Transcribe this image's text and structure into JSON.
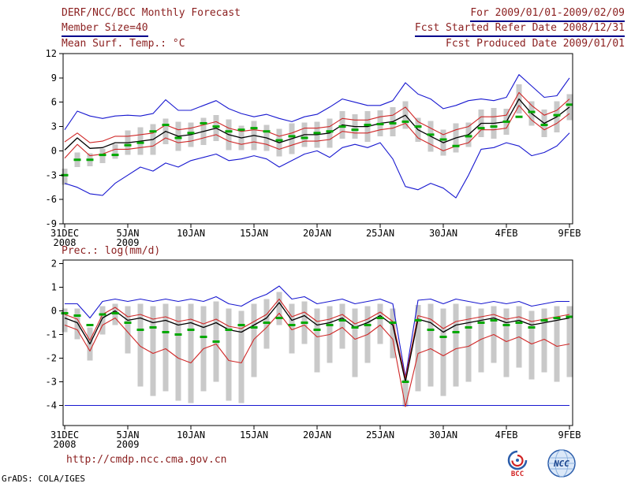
{
  "header": {
    "title": "DERF/NCC/BCC Monthly Forecast",
    "member_size": "Member Size=40",
    "for_range": "For 2009/01/01-2009/02/09",
    "fcst_started": "Fcst Started Refer Date 2008/12/31",
    "fcst_produced": "Fcst Produced Date 2009/01/01"
  },
  "footer": {
    "url": "http://cmdp.ncc.cma.gov.cn",
    "credit": "GrADS: COLA/IGES",
    "logos": [
      {
        "label": "BCC"
      },
      {
        "label": "NCC"
      }
    ]
  },
  "colors": {
    "blue": "#1818d0",
    "red": "#d02828",
    "black": "#000000",
    "green": "#00a800",
    "bar": "#c9c9c9",
    "text": "#8b1f1f",
    "rule": "#00008b"
  },
  "chart_data": [
    {
      "type": "line",
      "name": "surface-temperature-chart",
      "title": "Mean Surf. Temp.: °C",
      "ylabel": "°C",
      "ylim": [
        -9,
        12
      ],
      "yticks": [
        12,
        9,
        6,
        3,
        0,
        -3,
        -6,
        -9
      ],
      "xticks": [
        {
          "day": 0,
          "label": "31DEC",
          "sub": "2008"
        },
        {
          "day": 5,
          "label": "5JAN",
          "sub": "2009"
        },
        {
          "day": 10,
          "label": "10JAN"
        },
        {
          "day": 15,
          "label": "15JAN"
        },
        {
          "day": 20,
          "label": "20JAN"
        },
        {
          "day": 25,
          "label": "25JAN"
        },
        {
          "day": 30,
          "label": "30JAN"
        },
        {
          "day": 35,
          "label": "4FEB"
        },
        {
          "day": 40,
          "label": "9FEB"
        }
      ],
      "series": [
        {
          "name": "ensemble-max",
          "color": "blue",
          "width": 1.1,
          "values": [
            2.6,
            4.9,
            4.3,
            4.0,
            4.3,
            4.4,
            4.3,
            4.6,
            6.3,
            5.0,
            5.0,
            5.6,
            6.2,
            5.2,
            4.6,
            4.2,
            4.5,
            4.0,
            3.6,
            4.2,
            4.5,
            5.4,
            6.4,
            6.0,
            5.6,
            5.6,
            6.2,
            8.4,
            7.0,
            6.4,
            5.2,
            5.6,
            6.2,
            6.4,
            6.2,
            6.6,
            9.4,
            8.0,
            6.6,
            6.8,
            9.0
          ]
        },
        {
          "name": "ensemble-min",
          "color": "blue",
          "width": 1.1,
          "values": [
            -4.0,
            -4.5,
            -5.3,
            -5.5,
            -4.0,
            -3.0,
            -2.0,
            -2.5,
            -1.5,
            -2.0,
            -1.2,
            -0.8,
            -0.4,
            -1.2,
            -1.0,
            -0.6,
            -1.0,
            -2.0,
            -1.2,
            -0.4,
            0.0,
            -0.8,
            0.4,
            0.8,
            0.4,
            1.0,
            -1.0,
            -4.4,
            -4.8,
            -4.0,
            -4.6,
            -5.8,
            -3.0,
            0.2,
            0.4,
            1.0,
            0.6,
            -0.6,
            -0.2,
            0.6,
            2.2
          ]
        },
        {
          "name": "upper-quartile",
          "color": "red",
          "width": 1.1,
          "values": [
            1.1,
            2.2,
            1.0,
            1.2,
            1.8,
            1.8,
            2.0,
            2.2,
            3.2,
            2.6,
            2.8,
            3.2,
            3.6,
            2.8,
            2.4,
            2.6,
            2.4,
            1.8,
            2.2,
            2.8,
            2.8,
            3.0,
            4.0,
            3.8,
            3.8,
            4.2,
            4.4,
            5.4,
            3.6,
            2.8,
            2.0,
            2.6,
            3.0,
            4.2,
            4.2,
            4.4,
            7.2,
            5.6,
            4.4,
            5.0,
            6.4
          ]
        },
        {
          "name": "lower-quartile",
          "color": "red",
          "width": 1.1,
          "values": [
            -0.9,
            0.8,
            -0.6,
            -0.4,
            0.2,
            0.2,
            0.4,
            0.6,
            1.6,
            1.0,
            1.2,
            1.6,
            2.0,
            1.2,
            0.8,
            1.1,
            0.8,
            0.2,
            0.7,
            1.2,
            1.2,
            1.4,
            2.4,
            2.2,
            2.2,
            2.6,
            2.8,
            3.4,
            1.6,
            0.8,
            0.0,
            0.6,
            1.0,
            2.6,
            2.6,
            2.8,
            5.6,
            3.8,
            2.6,
            3.4,
            4.6
          ]
        },
        {
          "name": "ensemble-mean",
          "color": "black",
          "width": 1.3,
          "values": [
            0.1,
            1.6,
            0.3,
            0.4,
            1.0,
            1.0,
            1.2,
            1.4,
            2.4,
            1.8,
            2.0,
            2.4,
            2.8,
            2.0,
            1.6,
            1.9,
            1.6,
            1.0,
            1.5,
            2.0,
            2.0,
            2.2,
            3.2,
            3.0,
            3.0,
            3.4,
            3.6,
            4.4,
            2.6,
            1.8,
            1.0,
            1.6,
            2.0,
            3.4,
            3.4,
            3.6,
            6.4,
            4.6,
            3.4,
            4.2,
            5.4
          ]
        }
      ],
      "bars": {
        "high": [
          -2.2,
          -0.2,
          -0.3,
          0.3,
          0.8,
          2.5,
          2.9,
          3.3,
          4.0,
          3.6,
          3.5,
          4.1,
          4.4,
          3.9,
          3.1,
          3.7,
          3.2,
          2.7,
          3.4,
          3.5,
          3.6,
          4.0,
          4.9,
          4.5,
          4.9,
          5.0,
          5.4,
          6.1,
          4.1,
          3.7,
          2.6,
          3.4,
          3.5,
          5.1,
          5.3,
          5.2,
          8.2,
          6.1,
          5.1,
          6.1,
          7.0
        ],
        "low": [
          -4.2,
          -2.0,
          -1.9,
          -1.5,
          -1.0,
          -0.5,
          -0.5,
          -0.5,
          0.8,
          0.0,
          0.5,
          0.7,
          1.2,
          0.1,
          0.1,
          0.1,
          0.0,
          -0.7,
          -0.4,
          0.5,
          0.4,
          0.4,
          1.5,
          1.5,
          1.1,
          1.8,
          1.8,
          2.7,
          1.1,
          -0.1,
          -0.6,
          -0.2,
          0.5,
          1.7,
          1.5,
          2.0,
          4.6,
          3.1,
          1.7,
          2.3,
          3.8
        ]
      },
      "obs": [
        -3.0,
        -1.1,
        -1.1,
        -0.5,
        -0.5,
        0.7,
        1.0,
        2.4,
        3.2,
        1.6,
        2.2,
        3.4,
        3.0,
        2.4,
        2.6,
        2.8,
        2.4,
        1.3,
        1.8,
        1.6,
        2.2,
        2.4,
        3.0,
        2.6,
        3.2,
        3.3,
        3.4,
        3.6,
        3.0,
        2.0,
        1.4,
        0.6,
        1.8,
        2.8,
        3.0,
        3.6,
        4.2,
        4.8,
        3.2,
        4.4,
        5.7
      ]
    },
    {
      "type": "line",
      "name": "precipitation-chart",
      "title": "Prec.: log(mm/d)",
      "ylabel": "log(mm/d)",
      "ylim": [
        -4,
        2
      ],
      "yticks": [
        2,
        1,
        0,
        -1,
        -2,
        -3,
        -4
      ],
      "xticks": [
        {
          "day": 0,
          "label": "31DEC",
          "sub": "2008"
        },
        {
          "day": 5,
          "label": "5JAN",
          "sub": "2009"
        },
        {
          "day": 10,
          "label": "10JAN"
        },
        {
          "day": 15,
          "label": "15JAN"
        },
        {
          "day": 20,
          "label": "20JAN"
        },
        {
          "day": 25,
          "label": "25JAN"
        },
        {
          "day": 30,
          "label": "30JAN"
        },
        {
          "day": 35,
          "label": "4FEB"
        },
        {
          "day": 40,
          "label": "9FEB"
        }
      ],
      "series": [
        {
          "name": "ensemble-max",
          "color": "blue",
          "width": 1.1,
          "values": [
            0.3,
            0.3,
            -0.3,
            0.4,
            0.5,
            0.4,
            0.5,
            0.4,
            0.5,
            0.4,
            0.5,
            0.4,
            0.6,
            0.3,
            0.2,
            0.5,
            0.7,
            1.05,
            0.5,
            0.6,
            0.3,
            0.4,
            0.5,
            0.3,
            0.4,
            0.5,
            0.3,
            -2.8,
            0.45,
            0.5,
            0.3,
            0.5,
            0.4,
            0.3,
            0.4,
            0.3,
            0.4,
            0.2,
            0.3,
            0.4,
            0.4
          ]
        },
        {
          "name": "ensemble-min",
          "color": "blue",
          "width": 1.1,
          "values_const": -4
        },
        {
          "name": "upper-quartile",
          "color": "red",
          "width": 1.1,
          "values": [
            -0.15,
            -0.35,
            -1.25,
            -0.15,
            0.15,
            -0.25,
            -0.15,
            -0.35,
            -0.25,
            -0.45,
            -0.35,
            -0.55,
            -0.35,
            -0.65,
            -0.75,
            -0.45,
            -0.15,
            0.5,
            -0.25,
            -0.05,
            -0.45,
            -0.35,
            -0.15,
            -0.55,
            -0.35,
            -0.05,
            -0.45,
            -2.85,
            -0.2,
            -0.35,
            -0.75,
            -0.45,
            -0.35,
            -0.25,
            -0.15,
            -0.35,
            -0.25,
            -0.45,
            -0.35,
            -0.25,
            -0.15
          ]
        },
        {
          "name": "lower-quartile",
          "color": "red",
          "width": 1.1,
          "values": [
            -0.6,
            -0.8,
            -1.7,
            -0.6,
            -0.3,
            -0.9,
            -1.5,
            -1.8,
            -1.6,
            -2.0,
            -2.2,
            -1.6,
            -1.4,
            -2.1,
            -2.2,
            -1.2,
            -0.7,
            -0.1,
            -0.8,
            -0.6,
            -1.1,
            -1.0,
            -0.7,
            -1.2,
            -1.0,
            -0.6,
            -1.2,
            -4.05,
            -1.8,
            -1.6,
            -1.9,
            -1.6,
            -1.5,
            -1.2,
            -1.0,
            -1.3,
            -1.1,
            -1.4,
            -1.2,
            -1.5,
            -1.4
          ]
        },
        {
          "name": "ensemble-mean",
          "color": "black",
          "width": 1.3,
          "values": [
            -0.3,
            -0.5,
            -1.4,
            -0.3,
            0.0,
            -0.4,
            -0.3,
            -0.5,
            -0.4,
            -0.6,
            -0.5,
            -0.7,
            -0.5,
            -0.8,
            -0.9,
            -0.6,
            -0.3,
            0.35,
            -0.4,
            -0.2,
            -0.6,
            -0.5,
            -0.3,
            -0.7,
            -0.5,
            -0.2,
            -0.6,
            -3.0,
            -0.35,
            -0.5,
            -0.9,
            -0.6,
            -0.5,
            -0.4,
            -0.3,
            -0.5,
            -0.4,
            -0.6,
            -0.5,
            -0.4,
            -0.3
          ]
        }
      ],
      "bars": {
        "high": [
          0.1,
          0.1,
          -0.7,
          0.2,
          0.3,
          0.2,
          0.3,
          0.2,
          0.3,
          0.2,
          0.3,
          0.2,
          0.4,
          0.1,
          0.0,
          0.3,
          0.5,
          0.8,
          0.3,
          0.4,
          0.1,
          0.2,
          0.3,
          0.1,
          0.2,
          0.3,
          0.1,
          -2.9,
          0.25,
          0.3,
          0.1,
          0.3,
          0.2,
          0.1,
          0.2,
          0.1,
          0.2,
          0.0,
          0.1,
          0.2,
          0.2
        ],
        "low": [
          -0.9,
          -1.2,
          -2.1,
          -1.0,
          -0.6,
          -1.8,
          -3.2,
          -3.6,
          -3.4,
          -3.8,
          -3.9,
          -3.4,
          -3.0,
          -3.8,
          -3.9,
          -2.8,
          -1.6,
          -0.6,
          -1.8,
          -1.4,
          -2.6,
          -2.2,
          -1.6,
          -2.8,
          -2.2,
          -1.4,
          -2.0,
          -4.05,
          -3.4,
          -3.2,
          -3.6,
          -3.2,
          -3.0,
          -2.6,
          -2.2,
          -2.8,
          -2.4,
          -2.9,
          -2.6,
          -3.0,
          -2.8
        ]
      },
      "obs": [
        -0.1,
        -0.2,
        -0.6,
        -0.15,
        -0.1,
        -0.5,
        -0.8,
        -0.7,
        -0.9,
        -1.0,
        -0.8,
        -1.1,
        -1.3,
        -0.8,
        -0.6,
        -0.7,
        -0.5,
        -0.3,
        -0.6,
        -0.5,
        -0.8,
        -0.6,
        -0.4,
        -0.7,
        -0.6,
        -0.3,
        -0.5,
        -3.0,
        -0.4,
        -0.8,
        -1.1,
        -0.9,
        -0.7,
        -0.5,
        -0.4,
        -0.6,
        -0.5,
        -0.7,
        -0.4,
        -0.3,
        -0.25
      ]
    }
  ]
}
